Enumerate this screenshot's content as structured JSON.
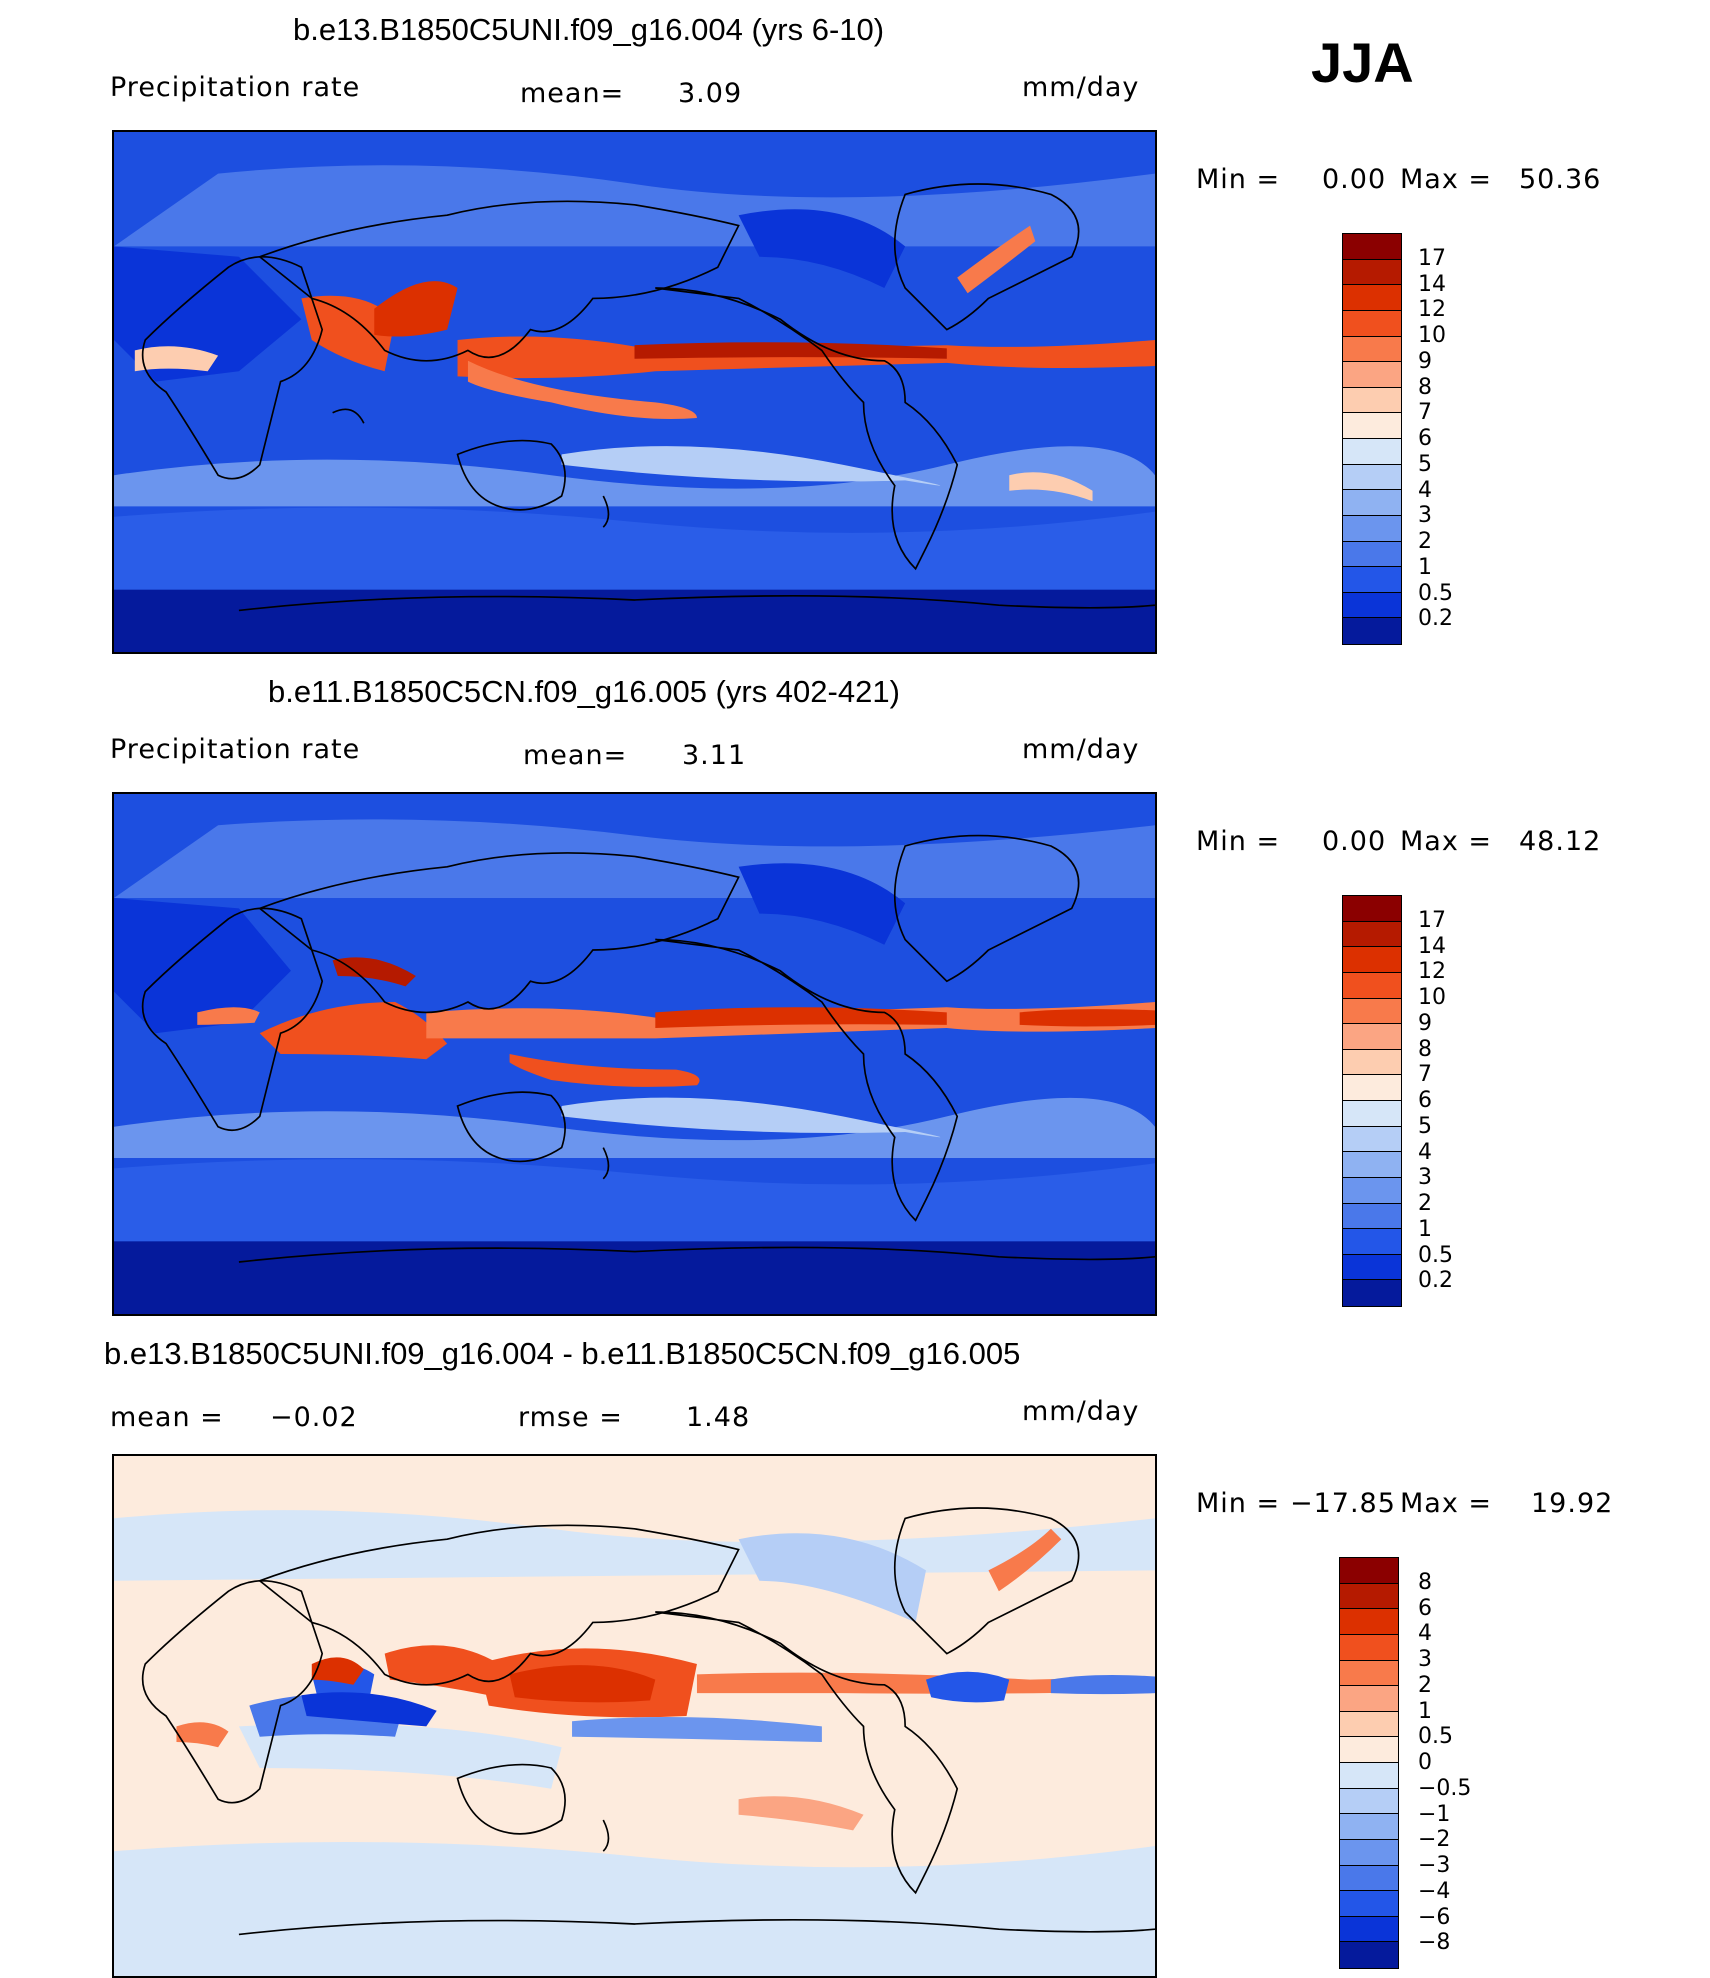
{
  "season": "JJA",
  "panels": [
    {
      "id": "top",
      "title": "b.e13.B1850C5UNI.f09_g16.004 (yrs 6-10)",
      "variable": "Precipitation rate",
      "stat_label": "mean=",
      "stat_value": "3.09",
      "units": "mm/day",
      "minmax": {
        "min_label": "Min =",
        "min": "0.00",
        "max_label": "Max =",
        "max": "50.36"
      },
      "colorbar": {
        "labels": [
          "17",
          "14",
          "12",
          "10",
          "9",
          "8",
          "7",
          "6",
          "5",
          "4",
          "3",
          "2",
          "1",
          "0.5",
          "0.2"
        ],
        "colors": [
          "#8b0000",
          "#b51a00",
          "#dc3000",
          "#f0501e",
          "#f87a4b",
          "#fba583",
          "#fdcdb0",
          "#fdebdd",
          "#d6e6f8",
          "#b5cef6",
          "#8fb2f2",
          "#6b95ee",
          "#4a78ea",
          "#2356e8",
          "#0a34d8",
          "#051a9c"
        ]
      }
    },
    {
      "id": "middle",
      "title": "b.e11.B1850C5CN.f09_g16.005 (yrs 402-421)",
      "variable": "Precipitation rate",
      "stat_label": "mean=",
      "stat_value": "3.11",
      "units": "mm/day",
      "minmax": {
        "min_label": "Min =",
        "min": "0.00",
        "max_label": "Max =",
        "max": "48.12"
      },
      "colorbar": {
        "labels": [
          "17",
          "14",
          "12",
          "10",
          "9",
          "8",
          "7",
          "6",
          "5",
          "4",
          "3",
          "2",
          "1",
          "0.5",
          "0.2"
        ],
        "colors": [
          "#8b0000",
          "#b51a00",
          "#dc3000",
          "#f0501e",
          "#f87a4b",
          "#fba583",
          "#fdcdb0",
          "#fdebdd",
          "#d6e6f8",
          "#b5cef6",
          "#8fb2f2",
          "#6b95ee",
          "#4a78ea",
          "#2356e8",
          "#0a34d8",
          "#051a9c"
        ]
      }
    },
    {
      "id": "bottom",
      "title": "b.e13.B1850C5UNI.f09_g16.004 - b.e11.B1850C5CN.f09_g16.005",
      "stat1_label": "mean =",
      "stat1_value": "−0.02",
      "stat2_label": "rmse =",
      "stat2_value": "1.48",
      "units": "mm/day",
      "minmax": {
        "min_label": "Min =",
        "min": "−17.85",
        "max_label": "Max =",
        "max": "19.92"
      },
      "colorbar": {
        "labels": [
          "8",
          "6",
          "4",
          "3",
          "2",
          "1",
          "0.5",
          "0",
          "−0.5",
          "−1",
          "−2",
          "−3",
          "−4",
          "−6",
          "−8"
        ],
        "colors": [
          "#8b0000",
          "#b51a00",
          "#dc3000",
          "#f0501e",
          "#f87a4b",
          "#fba583",
          "#fdcdb0",
          "#fdebdd",
          "#d6e6f8",
          "#b5cef6",
          "#8fb2f2",
          "#6b95ee",
          "#4a78ea",
          "#2356e8",
          "#0a34d8",
          "#051a9c"
        ]
      }
    }
  ]
}
